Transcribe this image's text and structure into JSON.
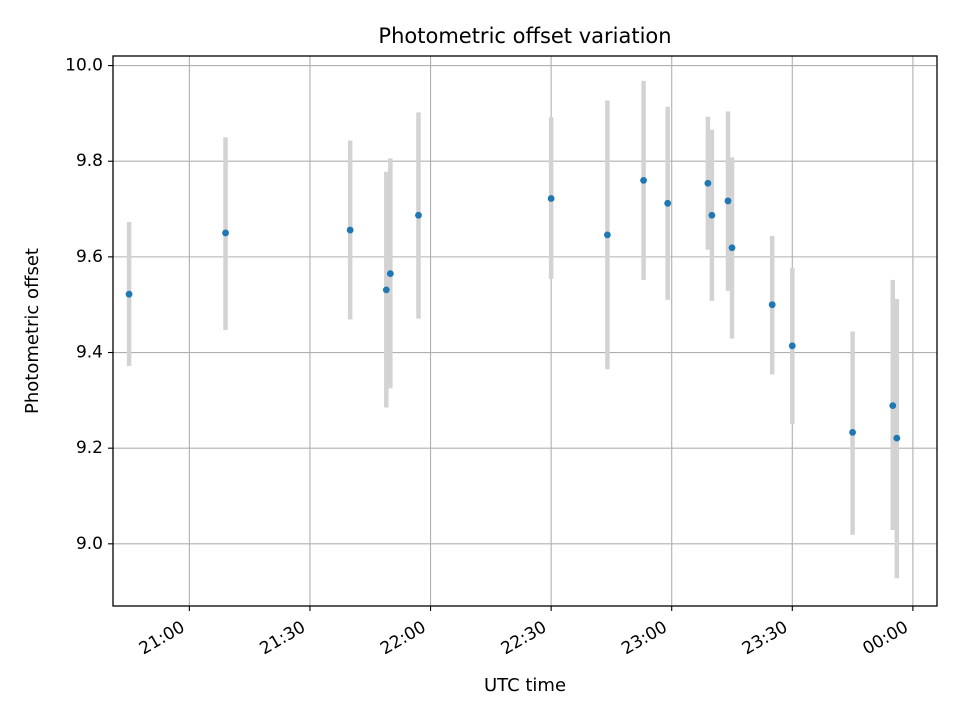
{
  "chart_data": {
    "type": "scatter",
    "title": "Photometric offset variation",
    "xlabel": "UTC time",
    "ylabel": "Photometric offset",
    "xlim": [
      "20:41",
      "00:06"
    ],
    "ylim": [
      8.87,
      10.02
    ],
    "x_ticks": [
      "21:00",
      "21:30",
      "22:00",
      "22:30",
      "23:00",
      "23:30",
      "00:00"
    ],
    "y_ticks": [
      "9.0",
      "9.2",
      "9.4",
      "9.6",
      "9.8",
      "10.0"
    ],
    "grid": true,
    "marker_color": "#1f77b4",
    "errorbar_color": "#d3d3d3",
    "points": [
      {
        "time": "20:45",
        "y": 9.522,
        "y_low": 9.372,
        "y_high": 9.673
      },
      {
        "time": "21:09",
        "y": 9.65,
        "y_low": 9.447,
        "y_high": 9.85
      },
      {
        "time": "21:40",
        "y": 9.656,
        "y_low": 9.469,
        "y_high": 9.843
      },
      {
        "time": "21:49",
        "y": 9.531,
        "y_low": 9.285,
        "y_high": 9.778
      },
      {
        "time": "21:50",
        "y": 9.565,
        "y_low": 9.325,
        "y_high": 9.806
      },
      {
        "time": "21:57",
        "y": 9.687,
        "y_low": 9.471,
        "y_high": 9.902
      },
      {
        "time": "22:30",
        "y": 9.722,
        "y_low": 9.554,
        "y_high": 9.892
      },
      {
        "time": "22:44",
        "y": 9.646,
        "y_low": 9.365,
        "y_high": 9.927
      },
      {
        "time": "22:53",
        "y": 9.76,
        "y_low": 9.552,
        "y_high": 9.968
      },
      {
        "time": "22:59",
        "y": 9.712,
        "y_low": 9.51,
        "y_high": 9.914
      },
      {
        "time": "23:09",
        "y": 9.754,
        "y_low": 9.615,
        "y_high": 9.893
      },
      {
        "time": "23:10",
        "y": 9.687,
        "y_low": 9.508,
        "y_high": 9.866
      },
      {
        "time": "23:14",
        "y": 9.717,
        "y_low": 9.529,
        "y_high": 9.904
      },
      {
        "time": "23:15",
        "y": 9.619,
        "y_low": 9.429,
        "y_high": 9.808
      },
      {
        "time": "23:25",
        "y": 9.5,
        "y_low": 9.354,
        "y_high": 9.644
      },
      {
        "time": "23:30",
        "y": 9.414,
        "y_low": 9.25,
        "y_high": 9.577
      },
      {
        "time": "23:45",
        "y": 9.233,
        "y_low": 9.019,
        "y_high": 9.444
      },
      {
        "time": "23:55",
        "y": 9.289,
        "y_low": 9.029,
        "y_high": 9.552
      },
      {
        "time": "23:56",
        "y": 9.221,
        "y_low": 8.928,
        "y_high": 9.512
      }
    ]
  }
}
